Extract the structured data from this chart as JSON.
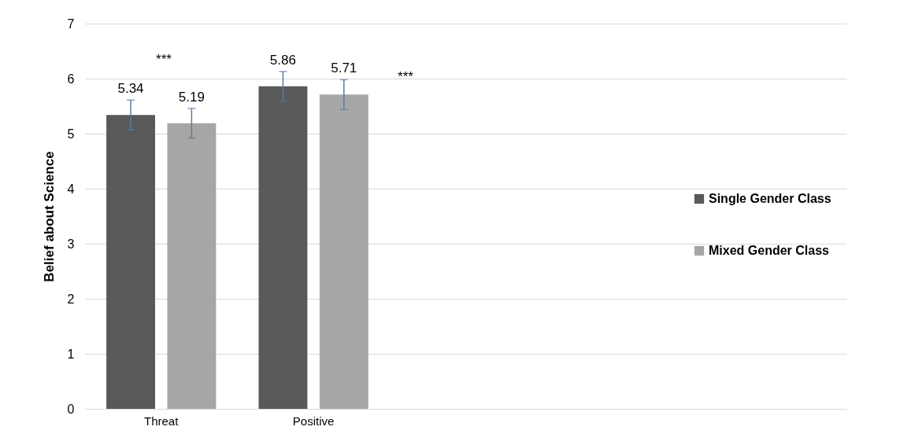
{
  "chart_data": {
    "type": "bar",
    "ylabel": "Belief about Science",
    "categories": [
      "Threat",
      "Positive",
      null,
      null,
      null
    ],
    "series": [
      {
        "name": "Single Gender Class",
        "color": "#595959",
        "values": [
          5.34,
          5.86,
          null,
          null,
          null
        ],
        "errors": [
          0.27,
          0.27,
          null,
          null,
          null
        ]
      },
      {
        "name": "Mixed Gender Class",
        "color": "#a6a6a6",
        "values": [
          5.19,
          5.71,
          null,
          null,
          null
        ],
        "errors": [
          0.27,
          0.27,
          null,
          null,
          null
        ]
      }
    ],
    "ylim": [
      0,
      7
    ],
    "yticks": [
      0,
      1,
      2,
      3,
      4,
      5,
      6,
      7
    ],
    "grid": "y",
    "legend": "right",
    "data_labels": true,
    "annotations": [
      "***",
      "***"
    ]
  }
}
